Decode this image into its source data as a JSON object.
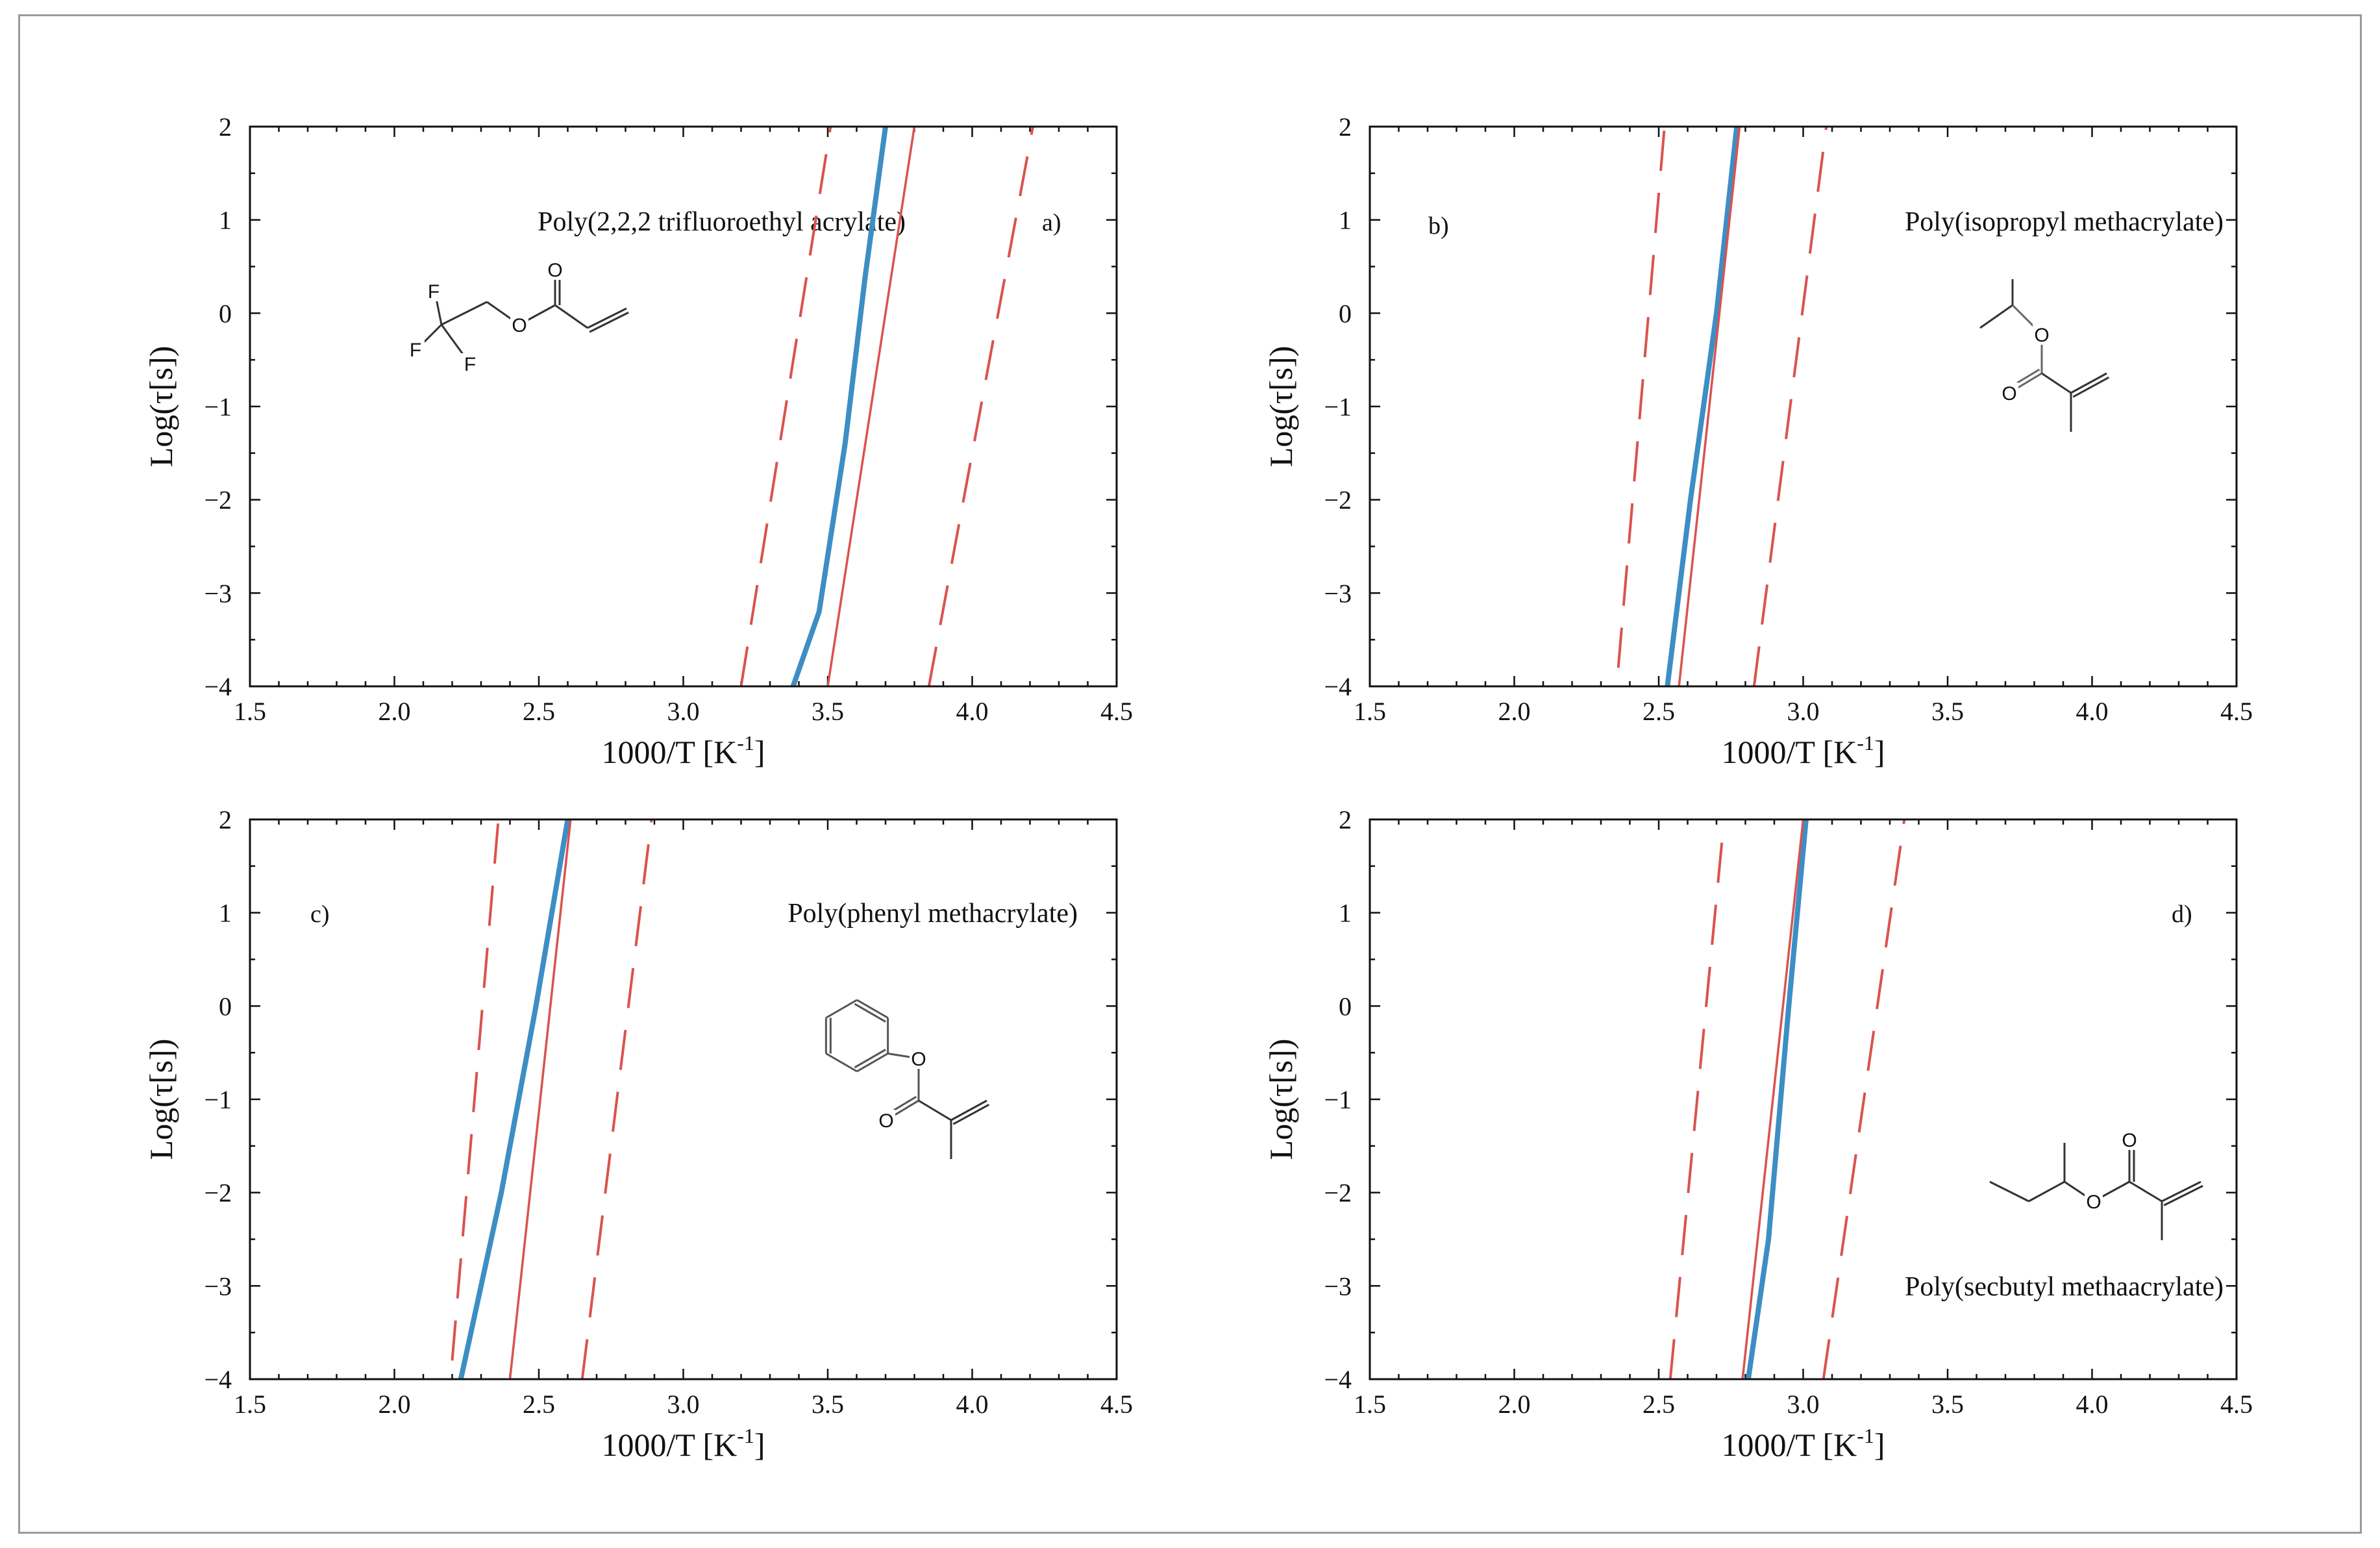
{
  "figure": {
    "series_styles": [
      {
        "name": "Model (blue, thick)",
        "color": "#3d8ec4",
        "style": "solid"
      },
      {
        "name": "Experimental fit (red, thin)",
        "color": "#d9534f",
        "style": "solid"
      },
      {
        "name": "Confidence band (red, dashed)",
        "color": "#d9534f",
        "style": "dashed"
      }
    ]
  },
  "chart_data": [
    {
      "type": "line",
      "panel_label": "a)",
      "title": "Poly(2,2,2 trifluoroethyl acrylate)",
      "xlabel": "1000/T [K",
      "xlabel_sup": "-1",
      "xlabel_end": "]",
      "ylabel": "Log(τ[s])",
      "xlim": [
        1.5,
        4.5
      ],
      "ylim": [
        -4,
        2
      ],
      "xticks": [
        "1.5",
        "2.0",
        "2.5",
        "3.0",
        "3.5",
        "4.0",
        "4.5"
      ],
      "yticks": [
        "-4",
        "-3",
        "-2",
        "-1",
        "0",
        "1",
        "2"
      ],
      "molecule": "trifluoroethyl-acrylate",
      "molecule_labels": {
        "f1": "F",
        "f2": "F",
        "f3": "F",
        "o1": "O",
        "o2": "O"
      },
      "series": [
        {
          "name": "blue",
          "x": [
            3.38,
            3.47,
            3.56,
            3.63,
            3.7
          ],
          "y": [
            -4,
            -3.2,
            -1.4,
            0.4,
            2
          ]
        },
        {
          "name": "red-solid",
          "x": [
            3.5,
            3.8
          ],
          "y": [
            -4,
            2
          ]
        },
        {
          "name": "red-dash-left",
          "x": [
            3.2,
            3.51
          ],
          "y": [
            -4,
            2
          ]
        },
        {
          "name": "red-dash-right",
          "x": [
            3.85,
            4.21
          ],
          "y": [
            -4,
            2
          ]
        }
      ]
    },
    {
      "type": "line",
      "panel_label": "b)",
      "title": "Poly(isopropyl methacrylate)",
      "xlabel": "1000/T [K",
      "xlabel_sup": "-1",
      "xlabel_end": "]",
      "ylabel": "Log(τ[s])",
      "xlim": [
        1.5,
        4.5
      ],
      "ylim": [
        -4,
        2
      ],
      "xticks": [
        "1.5",
        "2.0",
        "2.5",
        "3.0",
        "3.5",
        "4.0",
        "4.5"
      ],
      "yticks": [
        "-4",
        "-3",
        "-2",
        "-1",
        "0",
        "1",
        "2"
      ],
      "molecule": "isopropyl-methacrylate",
      "molecule_labels": {
        "o1": "O",
        "o2": "O"
      },
      "series": [
        {
          "name": "blue",
          "x": [
            2.53,
            2.61,
            2.7,
            2.77
          ],
          "y": [
            -4,
            -2,
            0,
            2
          ]
        },
        {
          "name": "red-solid",
          "x": [
            2.57,
            2.78
          ],
          "y": [
            -4,
            2
          ]
        },
        {
          "name": "red-dash-left",
          "x": [
            2.36,
            2.52
          ],
          "y": [
            -3.8,
            2
          ]
        },
        {
          "name": "red-dash-right",
          "x": [
            2.83,
            3.08
          ],
          "y": [
            -4,
            2
          ]
        }
      ]
    },
    {
      "type": "line",
      "panel_label": "c)",
      "title": "Poly(phenyl methacrylate)",
      "xlabel": "1000/T [K",
      "xlabel_sup": "-1",
      "xlabel_end": "]",
      "ylabel": "Log(τ[s])",
      "xlim": [
        1.5,
        4.5
      ],
      "ylim": [
        -4,
        2
      ],
      "xticks": [
        "1.5",
        "2.0",
        "2.5",
        "3.0",
        "3.5",
        "4.0",
        "4.5"
      ],
      "yticks": [
        "-4",
        "-3",
        "-2",
        "-1",
        "0",
        "1",
        "2"
      ],
      "molecule": "phenyl-methacrylate",
      "molecule_labels": {
        "o1": "O",
        "o2": "O"
      },
      "series": [
        {
          "name": "blue",
          "x": [
            2.23,
            2.37,
            2.49,
            2.6
          ],
          "y": [
            -4,
            -2,
            0,
            2
          ]
        },
        {
          "name": "red-solid",
          "x": [
            2.4,
            2.61
          ],
          "y": [
            -4,
            2
          ]
        },
        {
          "name": "red-dash-left",
          "x": [
            2.2,
            2.36
          ],
          "y": [
            -3.8,
            2
          ]
        },
        {
          "name": "red-dash-right",
          "x": [
            2.65,
            2.89
          ],
          "y": [
            -4,
            2
          ]
        }
      ]
    },
    {
      "type": "line",
      "panel_label": "d)",
      "title": "Poly(secbutyl methaacrylate)",
      "xlabel": "1000/T [K",
      "xlabel_sup": "-1",
      "xlabel_end": "]",
      "ylabel": "Log(τ[s])",
      "xlim": [
        1.5,
        4.5
      ],
      "ylim": [
        -4,
        2
      ],
      "xticks": [
        "1.5",
        "2.0",
        "2.5",
        "3.0",
        "3.5",
        "4.0",
        "4.5"
      ],
      "yticks": [
        "-4",
        "-3",
        "-2",
        "-1",
        "0",
        "1",
        "2"
      ],
      "molecule": "secbutyl-methacrylate",
      "molecule_labels": {
        "o1": "O",
        "o2": "O"
      },
      "series": [
        {
          "name": "blue",
          "x": [
            2.81,
            2.88,
            2.95,
            3.01
          ],
          "y": [
            -4,
            -2.5,
            0,
            2
          ]
        },
        {
          "name": "red-solid",
          "x": [
            2.79,
            3.0
          ],
          "y": [
            -4,
            2
          ]
        },
        {
          "name": "red-dash-left",
          "x": [
            2.54,
            2.72
          ],
          "y": [
            -4,
            1.8
          ]
        },
        {
          "name": "red-dash-right",
          "x": [
            3.07,
            3.35
          ],
          "y": [
            -4,
            2
          ]
        }
      ]
    }
  ]
}
